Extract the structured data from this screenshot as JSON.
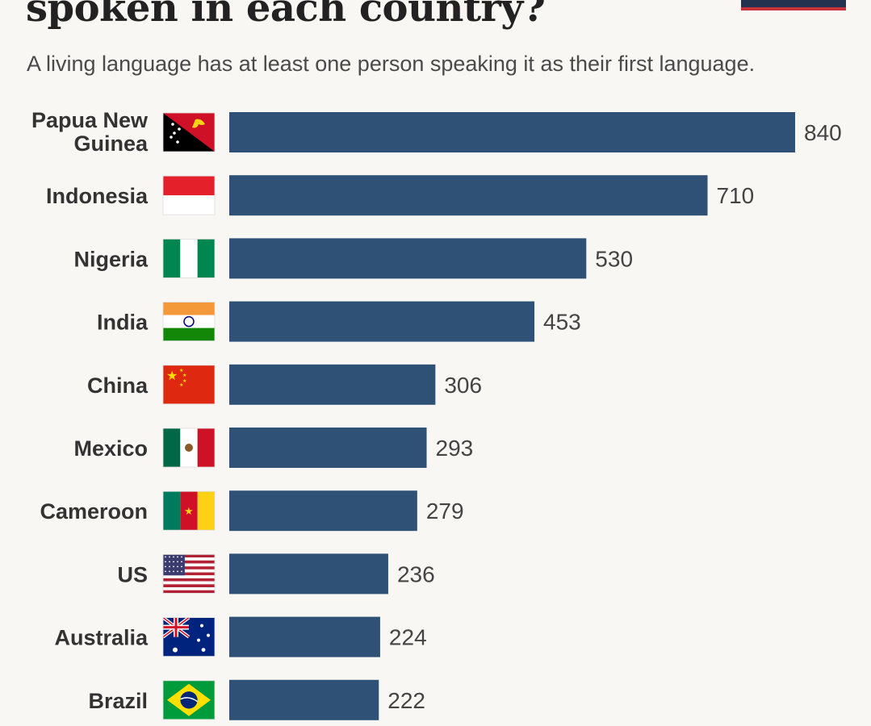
{
  "header": {
    "title": "spoken in each country?",
    "subtitle": "A living language has at least one person speaking it as their first language."
  },
  "colors": {
    "bar": "#2f5175",
    "accent_navy": "#25324f",
    "accent_red": "#c8323a"
  },
  "chart_data": {
    "type": "bar",
    "orientation": "horizontal",
    "categories": [
      "Papua New Guinea",
      "Indonesia",
      "Nigeria",
      "India",
      "China",
      "Mexico",
      "Cameroon",
      "US",
      "Australia",
      "Brazil"
    ],
    "values": [
      840,
      710,
      530,
      453,
      306,
      293,
      279,
      236,
      224,
      222
    ],
    "value_labels": [
      "840",
      "710",
      "530",
      "453",
      "306",
      "293",
      "279",
      "236",
      "224",
      "222"
    ],
    "flag_icons": [
      "papua-new-guinea-flag-icon",
      "indonesia-flag-icon",
      "nigeria-flag-icon",
      "india-flag-icon",
      "china-flag-icon",
      "mexico-flag-icon",
      "cameroon-flag-icon",
      "us-flag-icon",
      "australia-flag-icon",
      "brazil-flag-icon"
    ],
    "grid": false,
    "xlim": [
      0,
      840
    ],
    "title": "spoken in each country?",
    "subtitle": "A living language has at least one person speaking it as their first language."
  }
}
